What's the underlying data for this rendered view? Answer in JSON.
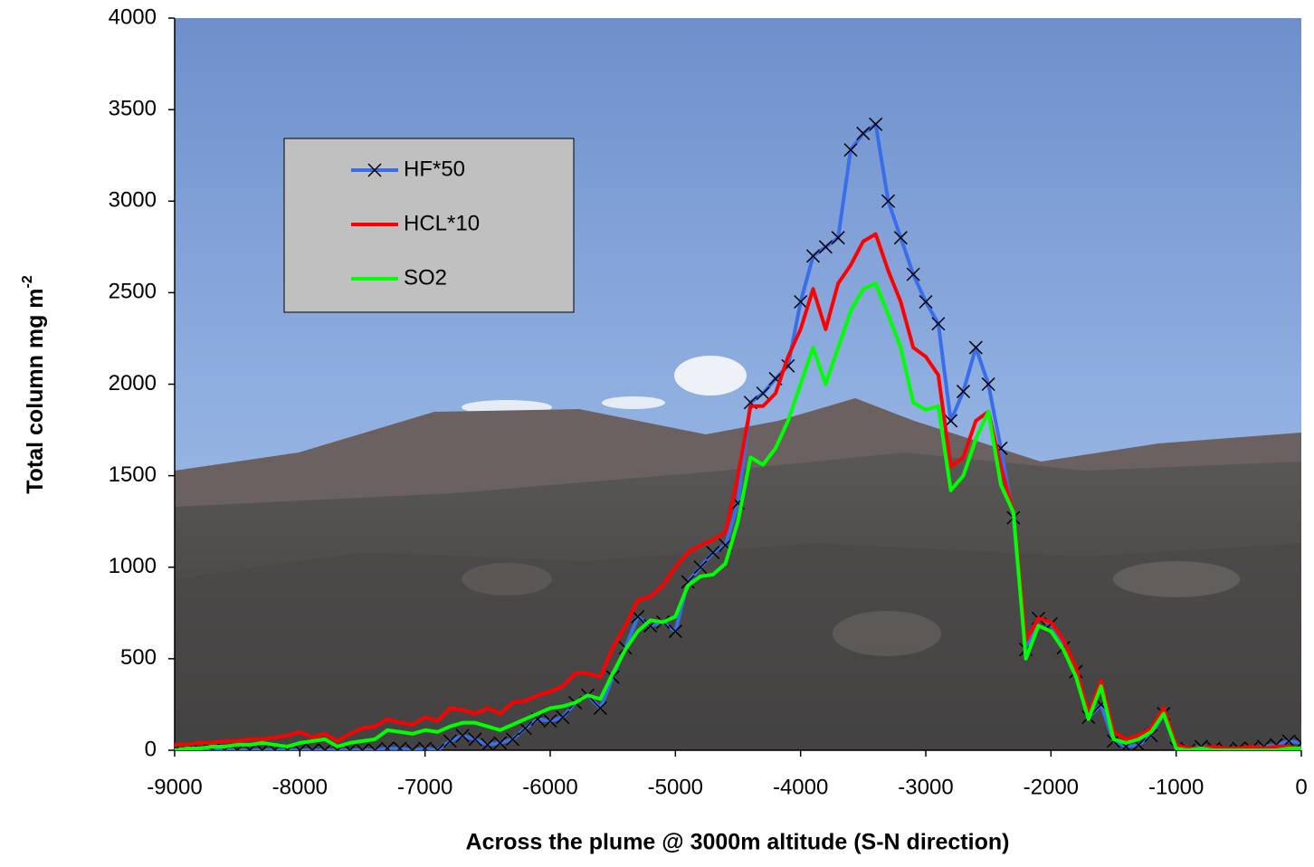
{
  "chart_data": {
    "type": "line",
    "xlabel": "Across the plume @ 3000m altitude (S-N direction)",
    "ylabel": "Total column mg m",
    "ylabel_superscript": "-2",
    "x": [
      -9000,
      -8900,
      -8800,
      -8700,
      -8600,
      -8500,
      -8400,
      -8300,
      -8200,
      -8100,
      -8000,
      -7900,
      -7800,
      -7700,
      -7600,
      -7500,
      -7400,
      -7300,
      -7200,
      -7100,
      -7000,
      -6900,
      -6800,
      -6700,
      -6600,
      -6500,
      -6400,
      -6300,
      -6200,
      -6100,
      -6000,
      -5900,
      -5800,
      -5700,
      -5600,
      -5500,
      -5400,
      -5300,
      -5200,
      -5100,
      -5000,
      -4900,
      -4800,
      -4700,
      -4600,
      -4500,
      -4400,
      -4300,
      -4200,
      -4100,
      -4000,
      -3900,
      -3800,
      -3700,
      -3600,
      -3500,
      -3400,
      -3300,
      -3200,
      -3100,
      -3000,
      -2900,
      -2800,
      -2700,
      -2600,
      -2500,
      -2400,
      -2300,
      -2200,
      -2100,
      -2000,
      -1900,
      -1800,
      -1700,
      -1600,
      -1500,
      -1400,
      -1300,
      -1200,
      -1100,
      -1000,
      -900,
      -800,
      -700,
      -600,
      -500,
      -400,
      -300,
      -200,
      -100,
      0
    ],
    "series": [
      {
        "name": "HF*50",
        "color": "#3a6ee8",
        "marker": "x",
        "values": [
          0,
          0,
          0,
          0,
          0,
          0,
          0,
          0,
          0,
          0,
          0,
          0,
          0,
          0,
          0,
          0,
          0,
          10,
          10,
          0,
          10,
          0,
          50,
          80,
          60,
          30,
          40,
          60,
          120,
          170,
          160,
          180,
          260,
          300,
          230,
          400,
          560,
          730,
          680,
          700,
          650,
          920,
          1000,
          1080,
          1120,
          1350,
          1900,
          1950,
          2030,
          2100,
          2450,
          2700,
          2750,
          2800,
          3280,
          3370,
          3420,
          3000,
          2800,
          2600,
          2450,
          2330,
          1800,
          1960,
          2200,
          2000,
          1650,
          1270,
          550,
          720,
          690,
          560,
          430,
          180,
          250,
          50,
          20,
          30,
          80,
          200,
          10,
          0,
          20,
          10,
          0,
          10,
          10,
          20,
          30,
          50,
          40
        ]
      },
      {
        "name": "HCL*10",
        "color": "#ff0000",
        "marker": "none",
        "values": [
          30,
          30,
          40,
          40,
          50,
          50,
          60,
          60,
          70,
          80,
          100,
          70,
          90,
          50,
          90,
          120,
          130,
          170,
          150,
          140,
          180,
          160,
          230,
          220,
          200,
          230,
          200,
          260,
          270,
          300,
          320,
          350,
          420,
          420,
          400,
          560,
          680,
          820,
          840,
          900,
          1000,
          1080,
          1120,
          1150,
          1190,
          1500,
          1880,
          1880,
          1950,
          2150,
          2300,
          2520,
          2300,
          2550,
          2650,
          2780,
          2820,
          2620,
          2450,
          2200,
          2150,
          2050,
          1550,
          1600,
          1800,
          1850,
          1550,
          1300,
          600,
          720,
          700,
          600,
          450,
          200,
          380,
          100,
          60,
          80,
          120,
          230,
          30,
          10,
          10,
          20,
          10,
          10,
          20,
          10,
          20,
          20,
          10
        ]
      },
      {
        "name": "SO2",
        "color": "#00ff00",
        "marker": "none",
        "values": [
          0,
          10,
          10,
          20,
          20,
          30,
          30,
          40,
          30,
          20,
          40,
          50,
          60,
          20,
          40,
          50,
          60,
          110,
          100,
          90,
          110,
          100,
          130,
          150,
          150,
          130,
          110,
          140,
          170,
          200,
          230,
          240,
          260,
          300,
          280,
          420,
          550,
          650,
          710,
          700,
          730,
          900,
          950,
          960,
          1020,
          1250,
          1600,
          1560,
          1650,
          1800,
          2000,
          2200,
          2000,
          2200,
          2400,
          2520,
          2550,
          2380,
          2200,
          1900,
          1860,
          1880,
          1420,
          1500,
          1700,
          1850,
          1450,
          1300,
          500,
          680,
          650,
          550,
          400,
          170,
          350,
          60,
          40,
          60,
          100,
          200,
          10,
          0,
          10,
          0,
          0,
          0,
          0,
          0,
          0,
          10,
          10
        ]
      }
    ],
    "xlim": [
      -9000,
      0
    ],
    "xticks": [
      -9000,
      -8000,
      -7000,
      -6000,
      -5000,
      -4000,
      -3000,
      -2000,
      -1000,
      0
    ],
    "ylim": [
      0,
      4000
    ],
    "yticks": [
      0,
      500,
      1000,
      1500,
      2000,
      2500,
      3000,
      3500,
      4000
    ],
    "grid": false,
    "legend": "upper-left"
  }
}
